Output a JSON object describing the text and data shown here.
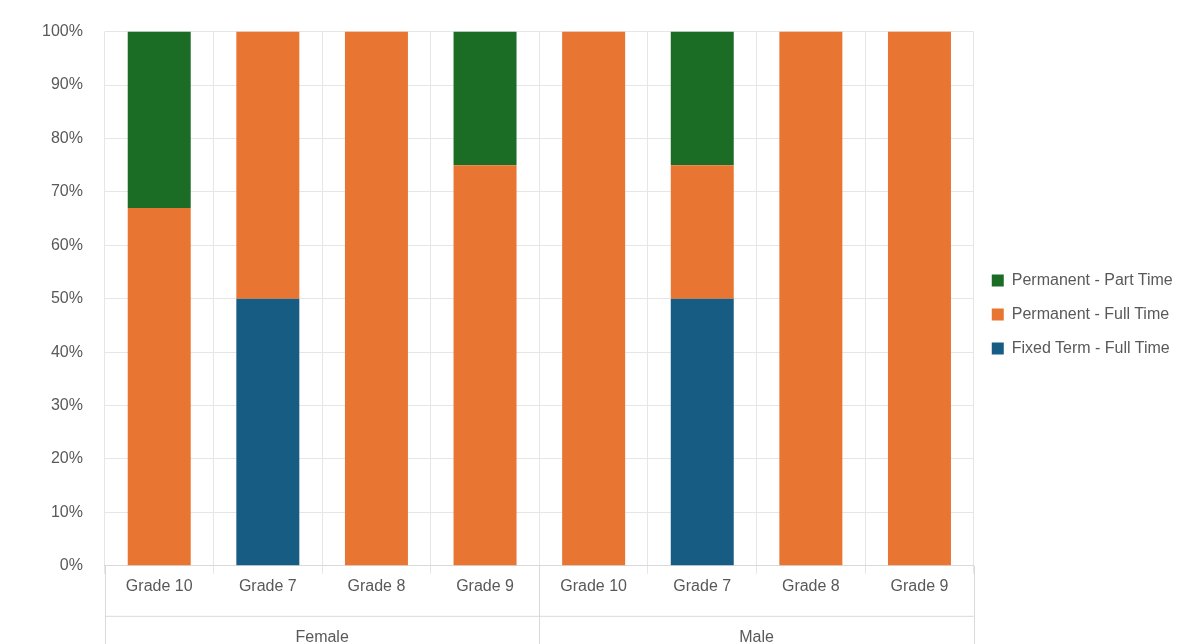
{
  "chart_data": {
    "type": "bar",
    "stacked": true,
    "categories": [
      "Grade 10",
      "Grade 7",
      "Grade 8",
      "Grade 9",
      "Grade 10",
      "Grade 7",
      "Grade 8",
      "Grade 9"
    ],
    "series": [
      {
        "name": "Fixed Term - Full Time",
        "color": "#175d83",
        "values": [
          null,
          50,
          null,
          null,
          null,
          50,
          null,
          null
        ]
      },
      {
        "name": "Permanent - Full Time",
        "color": "#e87532",
        "values": [
          67,
          50,
          100,
          75,
          100,
          25,
          100,
          100
        ]
      },
      {
        "name": "Permanent - Part Time",
        "color": "#1b6d26",
        "values": [
          33,
          null,
          null,
          25,
          null,
          25,
          null,
          null
        ]
      }
    ],
    "ylim": [
      0,
      100
    ],
    "yticks": [
      {
        "value": 0,
        "label": "0%"
      },
      {
        "value": 10,
        "label": "10%"
      },
      {
        "value": 20,
        "label": "20%"
      },
      {
        "value": 30,
        "label": "30%"
      },
      {
        "value": 40,
        "label": "40%"
      },
      {
        "value": 50,
        "label": "50%"
      },
      {
        "value": 60,
        "label": "60%"
      },
      {
        "value": 70,
        "label": "70%"
      },
      {
        "value": 80,
        "label": "80%"
      },
      {
        "value": 90,
        "label": "90%"
      },
      {
        "value": 100,
        "label": "100%"
      }
    ],
    "annotations": [
      "Female",
      "Male"
    ],
    "grid": true,
    "legend": "right"
  }
}
